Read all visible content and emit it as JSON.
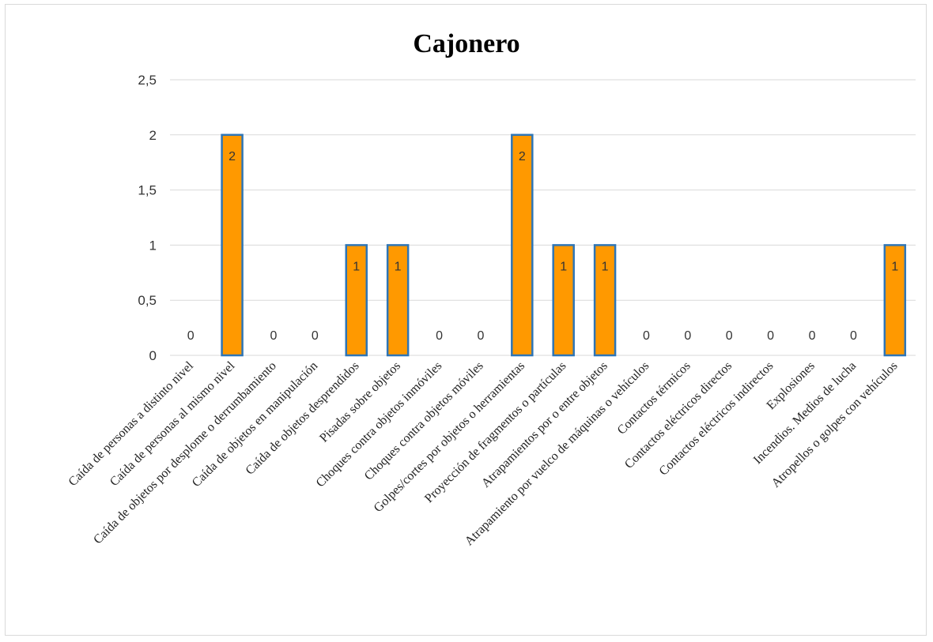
{
  "chart_data": {
    "type": "bar",
    "title": "Cajonero",
    "categories": [
      "Caída de personas a distinto nivel",
      "Caída de personas al mismo nivel",
      "Caída de objetos por desplome o derrumbamiento",
      "Caída de objetos en manipulación",
      "Caída de objetos desprendidos",
      "Pisadas sobre objetos",
      "Choques contra objetos inmóviles",
      "Choques contra objetos móviles",
      "Golpes/cortes por objetos o herramientas",
      "Proyección de fragmentos o partículas",
      "Atrapamientos por o entre objetos",
      "Atrapamiento por vuelco de máquinas o vehículos",
      "Contactos térmicos",
      "Contactos eléctricos directos",
      "Contactos eléctricos indirectos",
      "Explosiones",
      "Incendios. Medios de lucha",
      "Atropellos o golpes con vehículos"
    ],
    "values": [
      0,
      2,
      0,
      0,
      1,
      1,
      0,
      0,
      2,
      1,
      1,
      0,
      0,
      0,
      0,
      0,
      0,
      1
    ],
    "data_labels": [
      "0",
      "2",
      "0",
      "0",
      "1",
      "1",
      "0",
      "0",
      "2",
      "1",
      "1",
      "0",
      "0",
      "0",
      "0",
      "0",
      "0",
      "1"
    ],
    "ylim": [
      0,
      2.5
    ],
    "yticks": [
      0,
      0.5,
      1,
      1.5,
      2,
      2.5
    ],
    "ytick_labels": [
      "0",
      "0,5",
      "1",
      "1,5",
      "2",
      "2,5"
    ],
    "grid": true,
    "legend": "none",
    "colors": {
      "bar_fill": "#ff9900",
      "bar_border": "#2e75b6",
      "grid": "#d9d9d9"
    }
  }
}
